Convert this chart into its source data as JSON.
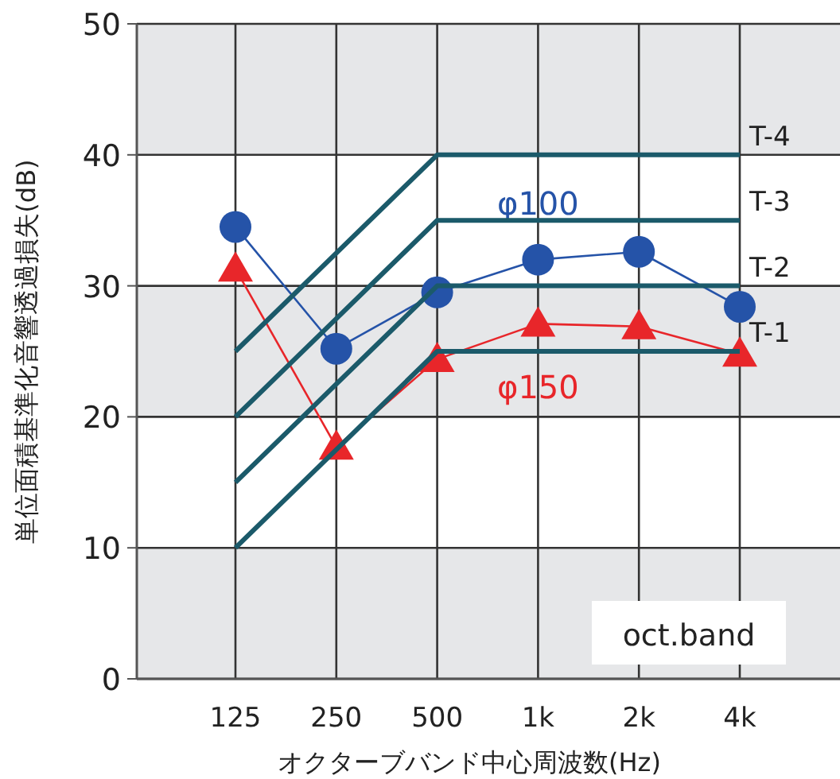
{
  "chart_data": {
    "type": "line",
    "ylabel": "単位面積基準化音響透過損失(dB)",
    "xlabel": "オクターブバンド中心周波数(Hz)",
    "categories": [
      "125",
      "250",
      "500",
      "1k",
      "2k",
      "4k"
    ],
    "ylim": [
      0,
      50
    ],
    "yticks": [
      0,
      10,
      20,
      30,
      40,
      50
    ],
    "grid": true,
    "bands": [
      {
        "axis": "y",
        "from": 0,
        "to": 10,
        "color": "#e6e7e9"
      },
      {
        "axis": "y",
        "from": 20,
        "to": 30,
        "color": "#e6e7e9"
      },
      {
        "axis": "y",
        "from": 40,
        "to": 50,
        "color": "#e6e7e9"
      }
    ],
    "series": [
      {
        "name": "T-1",
        "color": "#1b5a6a",
        "marker": "none",
        "values": [
          10,
          17.5,
          25,
          25,
          25,
          25
        ]
      },
      {
        "name": "T-2",
        "color": "#1b5a6a",
        "marker": "none",
        "values": [
          15,
          22.5,
          30,
          30,
          30,
          30
        ]
      },
      {
        "name": "T-3",
        "color": "#1b5a6a",
        "marker": "none",
        "values": [
          20,
          27.5,
          35,
          35,
          35,
          35
        ]
      },
      {
        "name": "T-4",
        "color": "#1b5a6a",
        "marker": "none",
        "values": [
          25,
          32.5,
          40,
          40,
          40,
          40
        ]
      },
      {
        "name": "φ100",
        "color": "#2553a8",
        "marker": "circle",
        "values": [
          34.5,
          25.2,
          29.5,
          32.0,
          32.6,
          28.4
        ]
      },
      {
        "name": "φ150",
        "color": "#e8262a",
        "marker": "triangle",
        "values": [
          31.3,
          17.7,
          24.4,
          27.1,
          26.9,
          24.8
        ]
      }
    ],
    "annotations": [
      "oct.band"
    ]
  }
}
